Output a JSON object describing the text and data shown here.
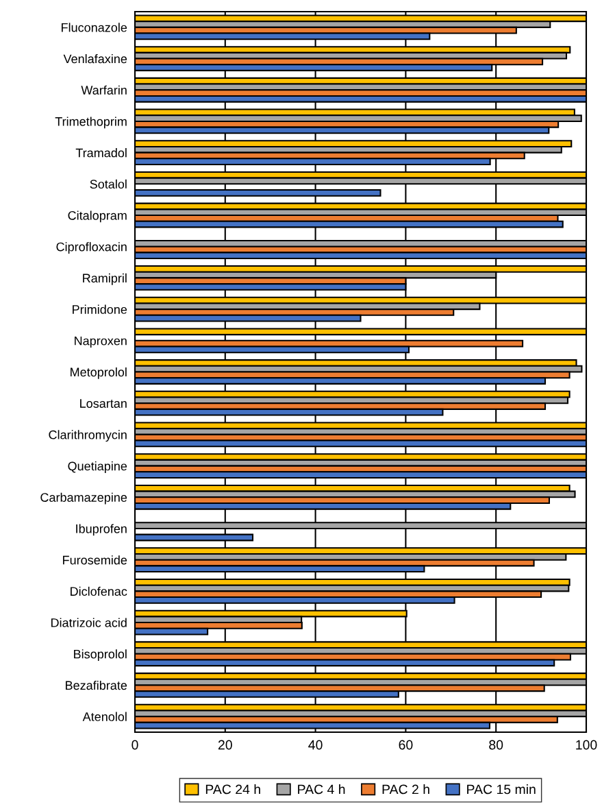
{
  "chart_data": {
    "type": "bar",
    "orientation": "horizontal",
    "categories": [
      "Fluconazole",
      "Venlafaxine",
      "Warfarin",
      "Trimethoprim",
      "Tramadol",
      "Sotalol",
      "Citalopram",
      "Ciprofloxacin",
      "Ramipril",
      "Primidone",
      "Naproxen",
      "Metoprolol",
      "Losartan",
      "Clarithromycin",
      "Quetiapine",
      "Carbamazepine",
      "Ibuprofen",
      "Furosemide",
      "Diclofenac",
      "Diatrizoic acid",
      "Bisoprolol",
      "Bezafibrate",
      "Atenolol"
    ],
    "series": [
      {
        "name": "PAC 24 h",
        "color": "#ffc000",
        "values": [
          100,
          96.4,
          100,
          97.4,
          96.7,
          100,
          100,
          null,
          100,
          100,
          100,
          97.8,
          96.3,
          100,
          100,
          96.3,
          null,
          100,
          96.3,
          60.2,
          100,
          100,
          100
        ]
      },
      {
        "name": "PAC 4 h",
        "color": "#a5a5a5",
        "values": [
          92.0,
          95.6,
          100,
          98.9,
          94.5,
          100,
          100,
          100,
          80,
          76.4,
          null,
          99.0,
          95.9,
          100,
          100,
          97.5,
          100,
          95.5,
          96.1,
          36.9,
          100,
          100,
          100
        ]
      },
      {
        "name": "PAC 2 h",
        "color": "#ed7d31",
        "values": [
          84.5,
          90.3,
          100,
          93.8,
          86.3,
          null,
          93.7,
          100,
          60,
          70.6,
          85.9,
          96.3,
          90.9,
          100,
          100,
          91.8,
          null,
          88.4,
          90.0,
          37.0,
          96.5,
          90.7,
          93.6
        ]
      },
      {
        "name": "PAC 15 min",
        "color": "#4472c4",
        "values": [
          65.3,
          79.1,
          100,
          91.7,
          78.7,
          54.4,
          94.8,
          100,
          60,
          50.0,
          60.7,
          90.9,
          68.2,
          100,
          100,
          83.2,
          26.1,
          64.1,
          70.8,
          16.1,
          92.9,
          58.4,
          78.6
        ]
      }
    ],
    "xlim": [
      0,
      100
    ],
    "xticks": [
      0,
      20,
      40,
      60,
      80,
      100
    ],
    "grid": "x",
    "legend": "bottom"
  }
}
